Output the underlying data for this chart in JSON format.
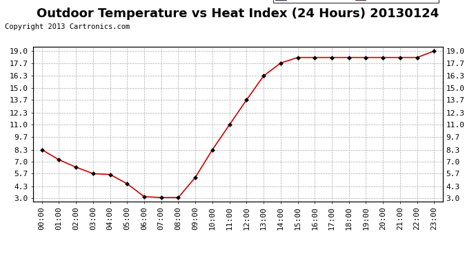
{
  "title": "Outdoor Temperature vs Heat Index (24 Hours) 20130124",
  "copyright": "Copyright 2013 Cartronics.com",
  "x_labels": [
    "00:00",
    "01:00",
    "02:00",
    "03:00",
    "04:00",
    "05:00",
    "06:00",
    "07:00",
    "08:00",
    "09:00",
    "10:00",
    "11:00",
    "12:00",
    "13:00",
    "14:00",
    "15:00",
    "16:00",
    "17:00",
    "18:00",
    "19:00",
    "20:00",
    "21:00",
    "22:00",
    "23:00"
  ],
  "temperature": [
    8.3,
    7.2,
    6.4,
    5.7,
    5.6,
    4.6,
    3.2,
    3.1,
    3.1,
    5.3,
    8.3,
    11.0,
    13.7,
    16.3,
    17.7,
    18.3,
    18.3,
    18.3,
    18.3,
    18.3,
    18.3,
    18.3,
    18.3,
    19.0
  ],
  "heat_index": [
    8.3,
    7.2,
    6.4,
    5.7,
    5.6,
    4.6,
    3.2,
    3.1,
    3.1,
    5.3,
    8.3,
    11.0,
    13.7,
    16.3,
    17.7,
    18.3,
    18.3,
    18.3,
    18.3,
    18.3,
    18.3,
    18.3,
    18.3,
    19.0
  ],
  "y_ticks": [
    3.0,
    4.3,
    5.7,
    7.0,
    8.3,
    9.7,
    11.0,
    12.3,
    13.7,
    15.0,
    16.3,
    17.7,
    19.0
  ],
  "ylim": [
    2.7,
    19.5
  ],
  "line_color": "#cc0000",
  "marker": "D",
  "marker_size": 3,
  "bg_color": "#ffffff",
  "plot_bg_color": "#ffffff",
  "grid_color": "#aaaaaa",
  "legend_heat_bg": "#0000cc",
  "legend_temp_bg": "#cc0000",
  "legend_text_color": "#ffffff",
  "title_fontsize": 13,
  "copyright_fontsize": 7.5,
  "tick_fontsize": 8,
  "legend_fontsize": 7.5
}
